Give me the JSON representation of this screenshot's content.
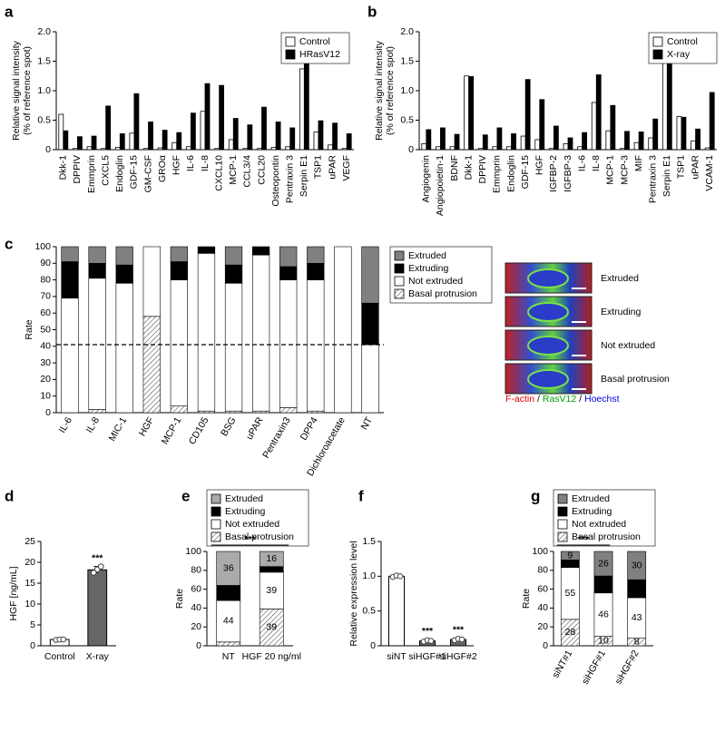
{
  "chart_data": [
    {
      "panel": "a",
      "type": "bar",
      "ylabel": [
        "Relative signal intensity",
        "(% of reference spot)"
      ],
      "categories": [
        "Dkk-1",
        "DPPIV",
        "Emmprin",
        "CXCL5",
        "Endoglin",
        "GDF-15",
        "GM-CSF",
        "GROα",
        "HGF",
        "IL-6",
        "IL-8",
        "CXCL10",
        "MCP-1",
        "CCL3/4",
        "CCL20",
        "Osteopontin",
        "Pentraxin 3",
        "Serpin E1",
        "TSP1",
        "uPAR",
        "VEGF"
      ],
      "series": [
        {
          "name": "Control",
          "color": "#ffffff",
          "values": [
            0.6,
            0.02,
            0.05,
            0.02,
            0.04,
            0.28,
            0.02,
            0.03,
            0.12,
            0.05,
            0.65,
            0.02,
            0.17,
            0.02,
            0.02,
            0.04,
            0.05,
            1.37,
            0.3,
            0.08,
            0.02
          ]
        },
        {
          "name": "HRasV12",
          "color": "#000000",
          "values": [
            0.32,
            0.22,
            0.23,
            0.74,
            0.27,
            0.95,
            0.47,
            0.33,
            0.29,
            0.62,
            1.12,
            1.09,
            0.53,
            0.42,
            0.72,
            0.47,
            0.37,
            1.52,
            0.49,
            0.45,
            0.27
          ]
        }
      ],
      "ylim": [
        0,
        2
      ],
      "yticks": [
        0,
        0.5,
        {
          "value": 1,
          "label": "1.0"
        },
        1.5,
        {
          "value": 2,
          "label": "2.0"
        }
      ],
      "legend": "upper right"
    },
    {
      "panel": "b",
      "type": "bar",
      "ylabel": [
        "Relative signal intensity",
        "(% of reference spot)"
      ],
      "categories": [
        "Angiogenin",
        "Angiopoietin-1",
        "BDNF",
        "Dkk-1",
        "DPPIV",
        "Emmprin",
        "Endoglin",
        "GDF-15",
        "HGF",
        "IGFBP-2",
        "IGFBP-3",
        "IL-6",
        "IL-8",
        "MCP-1",
        "MCP-3",
        "MIF",
        "Pentraxin 3",
        "Serpin E1",
        "TSP1",
        "uPAR",
        "VCAM-1"
      ],
      "series": [
        {
          "name": "Control",
          "color": "#ffffff",
          "values": [
            0.1,
            0.05,
            0.05,
            1.25,
            0.02,
            0.05,
            0.05,
            0.23,
            0.17,
            0.02,
            0.1,
            0.05,
            0.8,
            0.32,
            0.02,
            0.12,
            0.2,
            1.55,
            0.56,
            0.15,
            0.03
          ]
        },
        {
          "name": "X-ray",
          "color": "#000000",
          "values": [
            0.34,
            0.37,
            0.26,
            1.24,
            0.25,
            0.37,
            0.27,
            1.19,
            0.85,
            0.4,
            0.2,
            0.29,
            1.27,
            0.75,
            0.31,
            0.3,
            0.52,
            1.48,
            0.55,
            0.35,
            0.97
          ]
        }
      ],
      "ylim": [
        0,
        2
      ],
      "yticks": [
        0,
        0.5,
        {
          "value": 1,
          "label": "1.0"
        },
        1.5,
        {
          "value": 2,
          "label": "2.0"
        }
      ],
      "legend": "upper right"
    },
    {
      "panel": "c",
      "type": "stacked_bar",
      "ylabel": "Rate",
      "categories": [
        "IL-6",
        "IL-8",
        "MIC-1",
        "HGF",
        "MCP-1",
        "CD105",
        "BSG",
        "uPAR",
        "Pentraxin3",
        "DPP4",
        "Dichloroacetate",
        "NT"
      ],
      "series": [
        {
          "name": "Basal protrusion",
          "color": "#ffffff",
          "pattern": "hatch",
          "values": [
            0,
            2,
            0,
            58,
            4,
            1,
            1,
            1,
            3,
            1,
            0,
            0
          ]
        },
        {
          "name": "Not extruded",
          "color": "#ffffff",
          "values": [
            69,
            79,
            78,
            42,
            76,
            95,
            77,
            94,
            77,
            79,
            100,
            41
          ]
        },
        {
          "name": "Extruding",
          "color": "#000000",
          "values": [
            22,
            9,
            11,
            0,
            11,
            4,
            11,
            5,
            8,
            10,
            0,
            25
          ]
        },
        {
          "name": "Extruded",
          "color": "#808080",
          "values": [
            9,
            10,
            11,
            0,
            9,
            0,
            11,
            0,
            12,
            10,
            0,
            34
          ]
        }
      ],
      "ylim": [
        0,
        100
      ],
      "yticks": [
        0,
        10,
        20,
        30,
        40,
        50,
        60,
        70,
        80,
        90,
        100
      ],
      "reference_line": 41,
      "legend": "right"
    },
    {
      "panel": "d",
      "type": "bar",
      "ylabel": "HGF [ng/mL]",
      "categories": [
        "Control",
        "X-ray"
      ],
      "values": [
        1.5,
        18.2
      ],
      "errors": [
        0.2,
        0.8
      ],
      "points": [
        [
          1.4,
          1.5,
          1.5
        ],
        [
          17.5,
          18.3,
          19
        ]
      ],
      "colors": [
        "#ffffff",
        "#666666"
      ],
      "significance": [
        null,
        "***"
      ],
      "ylim": [
        0,
        25
      ],
      "yticks": [
        0,
        5,
        10,
        15,
        20,
        25
      ]
    },
    {
      "panel": "e",
      "type": "stacked_bar",
      "ylabel": "Rate",
      "categories": [
        "NT",
        "HGF 20 ng/ml"
      ],
      "series": [
        {
          "name": "Basal protrusion",
          "color": "#ffffff",
          "pattern": "hatch",
          "values": [
            4,
            39
          ]
        },
        {
          "name": "Not extruded",
          "color": "#ffffff",
          "values": [
            44,
            39
          ]
        },
        {
          "name": "Extruding",
          "color": "#000000",
          "values": [
            16,
            6
          ]
        },
        {
          "name": "Extruded",
          "color": "#aaaaaa",
          "values": [
            36,
            16
          ]
        }
      ],
      "ylim": [
        0,
        100
      ],
      "yticks": [
        0,
        20,
        40,
        60,
        80,
        100
      ],
      "significance": "***",
      "legend": "top"
    },
    {
      "panel": "f",
      "type": "bar",
      "ylabel": "Relative expression level",
      "categories": [
        "siNT",
        "siHGF#1",
        "siHGF#2"
      ],
      "values": [
        1.0,
        0.07,
        0.09
      ],
      "errors": [
        0.01,
        0.02,
        0.02
      ],
      "points": [
        [
          0.99,
          1.01,
          1.0
        ],
        [
          0.06,
          0.08,
          0.07
        ],
        [
          0.08,
          0.1,
          0.09
        ]
      ],
      "colors": [
        "#ffffff",
        "#666666",
        "#666666"
      ],
      "significance": [
        null,
        "***",
        "***"
      ],
      "ylim": [
        0,
        1.5
      ],
      "yticks": [
        0,
        0.5,
        {
          "value": 1,
          "label": "1.0"
        },
        1.5
      ]
    },
    {
      "panel": "g",
      "type": "stacked_bar",
      "ylabel": "Rate",
      "categories": [
        "siNT#1",
        "siHGF#1",
        "siHGF#2"
      ],
      "series": [
        {
          "name": "Basal protrusion",
          "color": "#ffffff",
          "pattern": "hatch",
          "values": [
            28,
            10,
            8
          ]
        },
        {
          "name": "Not extruded",
          "color": "#ffffff",
          "values": [
            55,
            46,
            43
          ]
        },
        {
          "name": "Extruding",
          "color": "#000000",
          "values": [
            8,
            18,
            19
          ]
        },
        {
          "name": "Extruded",
          "color": "#808080",
          "values": [
            9,
            26,
            30
          ]
        }
      ],
      "ylim": [
        0,
        100
      ],
      "yticks": [
        0,
        20,
        40,
        60,
        80,
        100
      ],
      "significance": "***",
      "legend": "top"
    }
  ],
  "images": {
    "labels": [
      "Extruded",
      "Extruding",
      "Not extruded",
      "Basal protrusion"
    ],
    "caption": [
      {
        "text": "F-actin",
        "color": "#e00000"
      },
      {
        "text": " / ",
        "color": "#000000"
      },
      {
        "text": "RasV12",
        "color": "#00a000"
      },
      {
        "text": " / ",
        "color": "#000000"
      },
      {
        "text": "Hoechst",
        "color": "#0000e0"
      }
    ]
  }
}
